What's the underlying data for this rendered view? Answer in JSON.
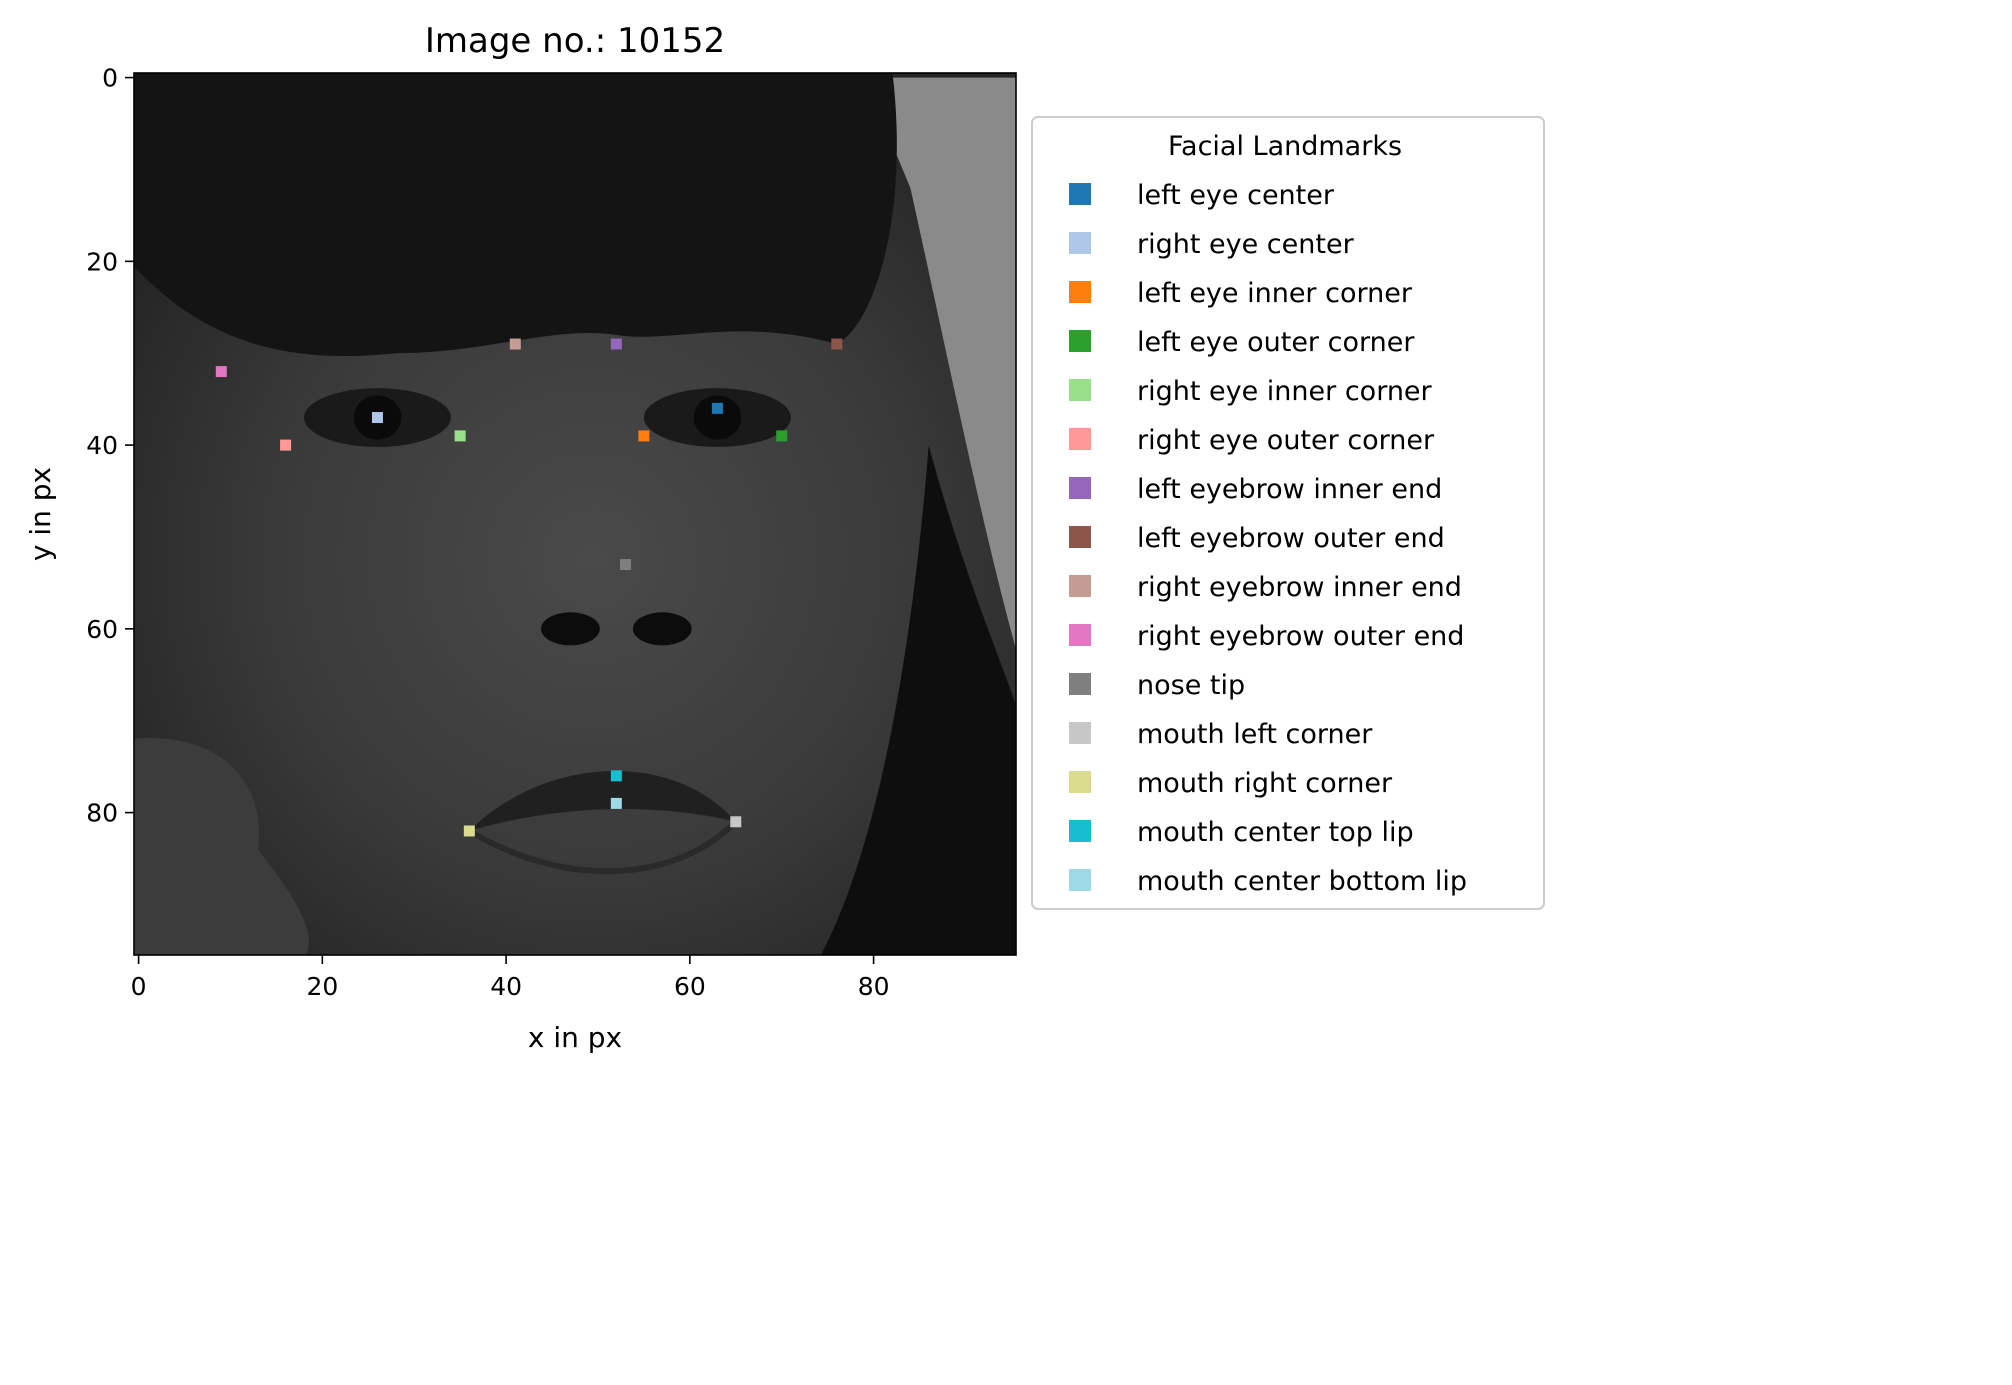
{
  "chart_data": {
    "type": "scatter",
    "title": "Image no.: 10152",
    "xlabel": "x in px",
    "ylabel": "y in px",
    "xlim": [
      -0.5,
      95.5
    ],
    "ylim": [
      95.5,
      -0.5
    ],
    "y_axis_inverted": true,
    "x_ticks": [
      0,
      20,
      40,
      60,
      80
    ],
    "y_ticks": [
      0,
      20,
      40,
      60,
      80
    ],
    "background": "grayscale face photograph (96x96 px)",
    "legend": {
      "title": "Facial Landmarks",
      "placement": "outside right"
    },
    "series": [
      {
        "name": "left eye center",
        "color": "#1f77b4",
        "x": 63,
        "y": 36
      },
      {
        "name": "right eye center",
        "color": "#aec7e8",
        "x": 26,
        "y": 37
      },
      {
        "name": "left eye inner corner",
        "color": "#ff7f0e",
        "x": 55,
        "y": 39
      },
      {
        "name": "left eye outer corner",
        "color": "#2ca02c",
        "x": 70,
        "y": 39
      },
      {
        "name": "right eye inner corner",
        "color": "#98df8a",
        "x": 35,
        "y": 39
      },
      {
        "name": "right eye outer corner",
        "color": "#ff9896",
        "x": 16,
        "y": 40
      },
      {
        "name": "left eyebrow inner end",
        "color": "#9467bd",
        "x": 52,
        "y": 29
      },
      {
        "name": "left eyebrow outer end",
        "color": "#8c564b",
        "x": 76,
        "y": 29
      },
      {
        "name": "right eyebrow inner end",
        "color": "#c49c94",
        "x": 41,
        "y": 29
      },
      {
        "name": "right eyebrow outer end",
        "color": "#e377c2",
        "x": 9,
        "y": 32
      },
      {
        "name": "nose tip",
        "color": "#7f7f7f",
        "x": 53,
        "y": 53
      },
      {
        "name": "mouth left corner",
        "color": "#c7c7c7",
        "x": 65,
        "y": 81
      },
      {
        "name": "mouth right corner",
        "color": "#dbdb8d",
        "x": 36,
        "y": 82
      },
      {
        "name": "mouth center top lip",
        "color": "#17becf",
        "x": 52,
        "y": 76
      },
      {
        "name": "mouth center bottom lip",
        "color": "#9edae5",
        "x": 52,
        "y": 79
      }
    ]
  }
}
